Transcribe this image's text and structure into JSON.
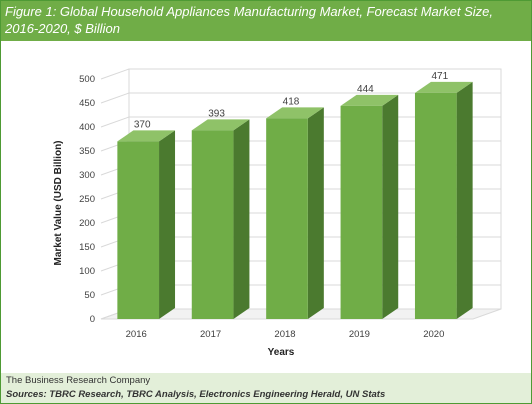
{
  "header": {
    "title": "Figure 1: Global Household Appliances Manufacturing Market, Forecast Market Size, 2016-2020, $ Billion"
  },
  "footer": {
    "company": "The Business Research Company",
    "sources": "Sources: TBRC Research, TBRC Analysis, Electronics Engineering Herald, UN Stats"
  },
  "colors": {
    "bar_front": "#70ad47",
    "bar_side": "#4b7a2f",
    "bar_top": "#8fc268",
    "header_bg": "#70ad47",
    "footer_bg": "#e3efd9"
  },
  "chart_data": {
    "type": "bar",
    "categories": [
      "2016",
      "2017",
      "2018",
      "2019",
      "2020"
    ],
    "values": [
      370,
      393,
      418,
      444,
      471
    ],
    "data_labels": [
      "370",
      "393",
      "418",
      "444",
      "471"
    ],
    "title": "",
    "xlabel": "Years",
    "ylabel": "Market Value (USD Billion)",
    "ylim": [
      0,
      500
    ],
    "yticks": [
      "0",
      "50",
      "100",
      "150",
      "200",
      "250",
      "300",
      "350",
      "400",
      "450",
      "500"
    ],
    "grid": true,
    "style": "3d-column"
  }
}
